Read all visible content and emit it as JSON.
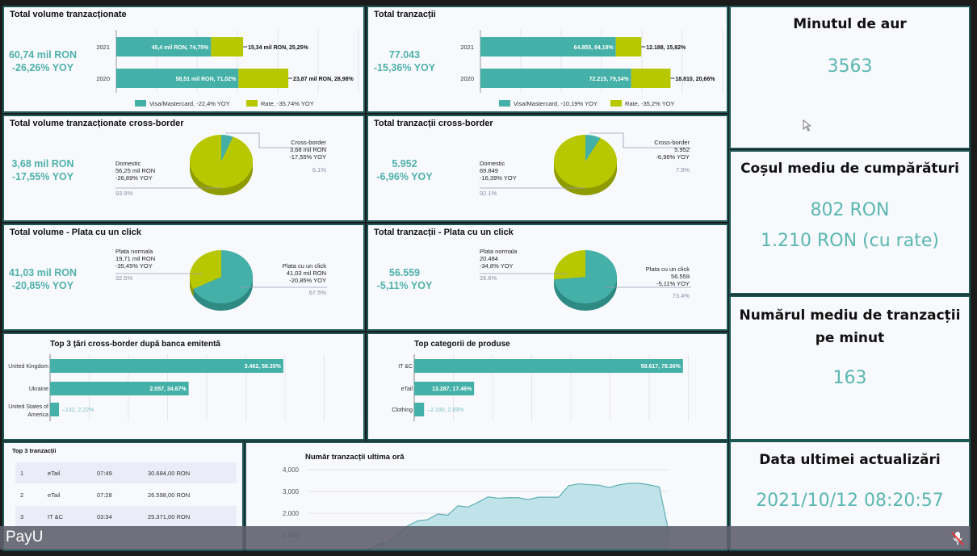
{
  "colors": {
    "teal": "#45b0a8",
    "lime": "#b8c800",
    "value": "#4fb1aa"
  },
  "vol": {
    "title": "Total volume tranzacționate",
    "value": "60,74 mil RON",
    "yoy": "-26,26% YOY",
    "chart_data": {
      "type": "bar",
      "stacked": true,
      "orientation": "horizontal",
      "categories": [
        "2021",
        "2020"
      ],
      "xlim": [
        0,
        116
      ],
      "series": [
        {
          "name": "Visa/Mastercard, -22,4% YOY",
          "values": [
            45.4,
            58.51
          ],
          "labels": [
            "45,4 mil RON, 74,75%",
            "58,51 mil RON, 71,02%"
          ]
        },
        {
          "name": "Rate, -35,74% YOY",
          "values": [
            15.34,
            23.87
          ],
          "labels": [
            "15,34 mil RON, 25,25%",
            "23,87 mil RON, 28,98%"
          ]
        }
      ]
    }
  },
  "trx": {
    "title": "Total tranzacții",
    "value": "77.043",
    "yoy": "-15,36% YOY",
    "chart_data": {
      "type": "bar",
      "stacked": true,
      "orientation": "horizontal",
      "categories": [
        "2021",
        "2020"
      ],
      "xlim": [
        0,
        116000
      ],
      "series": [
        {
          "name": "Visa/Mastercard, -10,19% YOY",
          "values": [
            64855,
            72215
          ],
          "labels": [
            "64.855, 84,18%",
            "72.215, 79,34%"
          ]
        },
        {
          "name": "Rate, -35,2% YOY",
          "values": [
            12188,
            18810
          ],
          "labels": [
            "12.188, 15,82%",
            "18.810, 20,66%"
          ]
        }
      ]
    }
  },
  "pies": [
    {
      "title": "Total volume tranzacționate cross-border",
      "value": "3,68 mil RON",
      "yoy": "-17,55% YOY",
      "left": {
        "name": "Domestic",
        "val": "56,25 mil RON",
        "yoy": "-26,89% YOY",
        "pct": "93.9%"
      },
      "right": {
        "name": "Cross-border",
        "val": "3,68 mil RON",
        "yoy": "-17,55% YOY",
        "pct": "6.1%"
      },
      "chart_data": {
        "type": "pie",
        "slices": [
          {
            "name": "Cross-border",
            "value": 6.1,
            "color": "teal"
          },
          {
            "name": "Domestic",
            "value": 93.9,
            "color": "lime"
          }
        ]
      }
    },
    {
      "title": "Total tranzacții cross-border",
      "value": "5.952",
      "yoy": "-6,96% YOY",
      "left": {
        "name": "Domestic",
        "val": "69.849",
        "yoy": "-16,39% YOY",
        "pct": "92.1%"
      },
      "right": {
        "name": "Cross-border",
        "val": "5.952",
        "yoy": "-6,96% YOY",
        "pct": "7.9%"
      },
      "chart_data": {
        "type": "pie",
        "slices": [
          {
            "name": "Cross-border",
            "value": 7.9,
            "color": "teal"
          },
          {
            "name": "Domestic",
            "value": 92.1,
            "color": "lime"
          }
        ]
      }
    },
    {
      "title": "Total volume - Plata cu un click",
      "value": "41,03 mil RON",
      "yoy": "-20,85% YOY",
      "left": {
        "name": "Plata normala",
        "val": "19,71 mil RON",
        "yoy": "-35,45% YOY",
        "pct": "32.5%"
      },
      "right": {
        "name": "Plata cu un click",
        "val": "41,03 mil RON",
        "yoy": "-20,85% YOY",
        "pct": "67.5%"
      },
      "chart_data": {
        "type": "pie",
        "slices": [
          {
            "name": "Plata cu un click",
            "value": 67.5,
            "color": "teal"
          },
          {
            "name": "Plata normala",
            "value": 32.5,
            "color": "lime"
          }
        ]
      }
    },
    {
      "title": "Total tranzacții - Plata cu un click",
      "value": "56.559",
      "yoy": "-5,11% YOY",
      "left": {
        "name": "Plata normala",
        "val": "20.484",
        "yoy": "-34,8% YOY",
        "pct": "26.6%"
      },
      "right": {
        "name": "Plata cu un click",
        "val": "56.559",
        "yoy": "-5,11% YOY",
        "pct": "73.4%"
      },
      "chart_data": {
        "type": "pie",
        "slices": [
          {
            "name": "Plata cu un click",
            "value": 73.4,
            "color": "teal"
          },
          {
            "name": "Plata normala",
            "value": 26.6,
            "color": "lime"
          }
        ]
      }
    }
  ],
  "countries": {
    "title": "Top 3 țări cross-border după banca emitentă",
    "chart_data": {
      "type": "bar",
      "orientation": "horizontal",
      "xlim": [
        0,
        4650
      ],
      "categories": [
        "United Kingdom",
        "Ukraine",
        "United States of America"
      ],
      "values": [
        3462,
        2057,
        132
      ],
      "labels": [
        "3.462, 58.35%",
        "2.057, 34.67%",
        "132, 2.22%"
      ]
    }
  },
  "categories": {
    "title": "Top categorii de produse",
    "chart_data": {
      "type": "bar",
      "orientation": "horizontal",
      "xlim": [
        0,
        69500
      ],
      "categories": [
        "IT &C",
        "eTail",
        "Clothing"
      ],
      "values": [
        59617,
        13287,
        2190
      ],
      "labels": [
        "59.617, 78.36%",
        "13.287, 17.46%",
        "2.190, 2.89%"
      ]
    }
  },
  "top3": {
    "title": "Top 3 tranzacții",
    "rows": [
      {
        "rank": "1",
        "cat": "eTail",
        "time": "07:49",
        "amount": "30.684,00 RON"
      },
      {
        "rank": "2",
        "cat": "eTail",
        "time": "07:28",
        "amount": "26.598,00 RON"
      },
      {
        "rank": "3",
        "cat": "IT &C",
        "time": "03:34",
        "amount": "25.371,00 RON"
      }
    ]
  },
  "hour": {
    "title": "Număr tranzacții ultima oră",
    "chart_data": {
      "type": "area",
      "ylim": [
        0,
        4000
      ],
      "yticks": [
        "1,000",
        "2,000",
        "3,000",
        "4,000"
      ],
      "ytick_values": [
        1000,
        2000,
        3000,
        4000
      ],
      "values": [
        0,
        0,
        0,
        0,
        0,
        0,
        319,
        565,
        687,
        994,
        1423,
        1644,
        1706,
        1963,
        1914,
        2343,
        2282,
        2503,
        2748,
        2687,
        2712,
        2712,
        2626,
        2736,
        2736,
        2736,
        3264,
        3350,
        3313,
        3288,
        3178,
        3301,
        3374,
        3374,
        3301,
        3202,
        994
      ]
    }
  },
  "kpis": [
    {
      "title": "Minutul de aur",
      "lines": [
        "3563"
      ]
    },
    {
      "title": "Coșul mediu de cumpărături",
      "lines": [
        "802 RON",
        "1.210 RON (cu rate)"
      ]
    },
    {
      "title": "Numărul mediu de tranzacții pe minut",
      "lines": [
        "163"
      ]
    },
    {
      "title": "Data ultimei actualizări",
      "lines": [
        "2021/10/12 08:20:57"
      ]
    }
  ],
  "overlay": {
    "name": "PayU"
  }
}
